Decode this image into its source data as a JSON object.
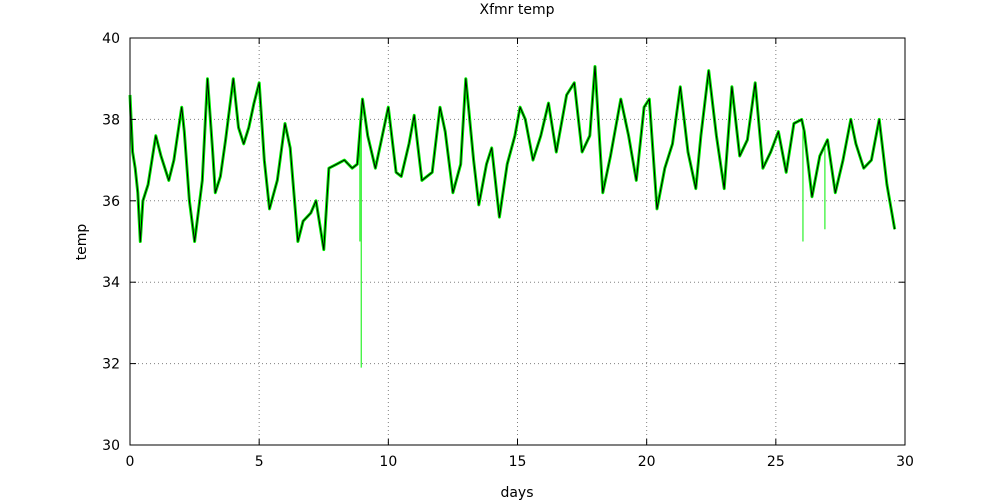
{
  "chart_data": {
    "type": "line",
    "title": "Xfmr temp",
    "xlabel": "days",
    "ylabel": "temp",
    "xlim": [
      0,
      30
    ],
    "ylim": [
      30,
      40
    ],
    "x_ticks": [
      "0",
      "5",
      "10",
      "15",
      "20",
      "25",
      "30"
    ],
    "y_ticks": [
      "30",
      "32",
      "34",
      "36",
      "38",
      "40"
    ],
    "grid": true,
    "legend": "none",
    "colors": {
      "raw": "#00ee00",
      "smoothed": "#000000"
    },
    "series": [
      {
        "x": [
          0,
          0.1,
          0.2,
          0.3,
          0.4,
          0.5,
          0.7,
          1.0,
          1.2,
          1.5,
          1.7,
          2.0,
          2.1,
          2.3,
          2.5,
          2.8,
          3.0,
          3.2,
          3.3,
          3.5,
          3.7,
          4.0,
          4.2,
          4.4,
          4.6,
          4.8,
          5.0,
          5.2,
          5.4,
          5.7,
          6.0,
          6.2,
          6.5,
          6.7,
          7.0,
          7.2,
          7.5,
          7.7,
          8.0,
          8.3,
          8.6,
          8.8,
          9.0,
          9.2,
          9.5,
          9.7,
          10.0,
          10.3,
          10.5,
          10.8,
          11.0,
          11.3,
          11.7,
          12.0,
          12.2,
          12.5,
          12.8,
          13.0,
          13.3,
          13.5,
          13.8,
          14.0,
          14.3,
          14.6,
          14.9,
          15.1,
          15.3,
          15.6,
          15.9,
          16.2,
          16.5,
          16.9,
          17.2,
          17.5,
          17.8,
          18.0,
          18.3,
          18.6,
          19.0,
          19.3,
          19.6,
          19.9,
          20.1,
          20.4,
          20.7,
          21.0,
          21.3,
          21.6,
          21.9,
          22.1,
          22.4,
          22.7,
          23.0,
          23.3,
          23.6,
          23.9,
          24.2,
          24.5,
          24.8,
          25.1,
          25.4,
          25.7,
          26.0,
          26.1,
          26.4,
          26.7,
          27.0,
          27.3,
          27.6,
          27.9,
          28.1,
          28.4,
          28.7,
          29.0,
          29.3,
          29.6
        ],
        "y": [
          38.6,
          37.2,
          36.8,
          36.2,
          35.0,
          36.0,
          36.4,
          37.6,
          37.1,
          36.5,
          37.0,
          38.3,
          37.7,
          36.0,
          35.0,
          36.5,
          39.0,
          37.2,
          36.2,
          36.6,
          37.5,
          39.0,
          37.8,
          37.4,
          37.8,
          38.4,
          38.9,
          37.0,
          35.8,
          36.5,
          37.9,
          37.3,
          35.0,
          35.5,
          35.7,
          36.0,
          34.8,
          36.8,
          36.9,
          37.0,
          36.8,
          36.9,
          38.5,
          37.6,
          36.8,
          37.4,
          38.3,
          36.7,
          36.6,
          37.4,
          38.1,
          36.5,
          36.7,
          38.3,
          37.7,
          36.2,
          36.9,
          39.0,
          37.0,
          35.9,
          36.9,
          37.3,
          35.6,
          36.9,
          37.6,
          38.3,
          38.0,
          37.0,
          37.6,
          38.4,
          37.2,
          38.6,
          38.9,
          37.2,
          37.6,
          39.3,
          36.2,
          37.1,
          38.5,
          37.6,
          36.5,
          38.3,
          38.5,
          35.8,
          36.8,
          37.4,
          38.8,
          37.2,
          36.3,
          37.6,
          39.2,
          37.6,
          36.3,
          38.8,
          37.1,
          37.5,
          38.9,
          36.8,
          37.2,
          37.7,
          36.7,
          37.9,
          38.0,
          37.7,
          36.1,
          37.1,
          37.5,
          36.2,
          37.0,
          38.0,
          37.4,
          36.8,
          37.0,
          38.0,
          36.4,
          35.3
        ]
      }
    ],
    "spikes": [
      {
        "x": 8.95,
        "y": 31.9
      },
      {
        "x": 8.9,
        "y": 35.0
      },
      {
        "x": 26.05,
        "y": 35.0
      },
      {
        "x": 26.9,
        "y": 35.3
      }
    ]
  }
}
